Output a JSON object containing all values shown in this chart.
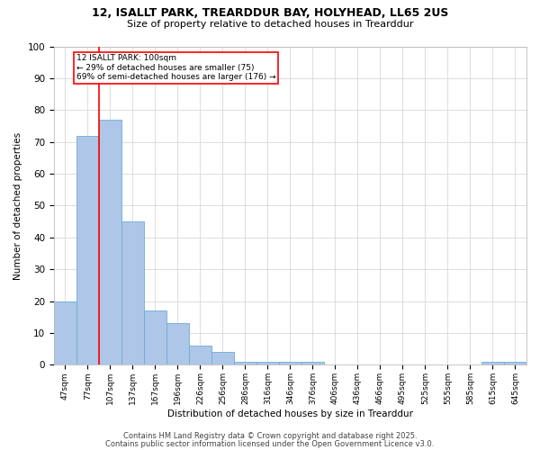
{
  "title1": "12, ISALLT PARK, TREARDDUR BAY, HOLYHEAD, LL65 2US",
  "title2": "Size of property relative to detached houses in Trearddur",
  "xlabel": "Distribution of detached houses by size in Trearddur",
  "ylabel": "Number of detached properties",
  "bins": [
    "47sqm",
    "77sqm",
    "107sqm",
    "137sqm",
    "167sqm",
    "196sqm",
    "226sqm",
    "256sqm",
    "286sqm",
    "316sqm",
    "346sqm",
    "376sqm",
    "406sqm",
    "436sqm",
    "466sqm",
    "495sqm",
    "525sqm",
    "555sqm",
    "585sqm",
    "615sqm",
    "645sqm"
  ],
  "values": [
    20,
    72,
    77,
    45,
    17,
    13,
    6,
    4,
    1,
    1,
    1,
    1,
    0,
    0,
    0,
    0,
    0,
    0,
    0,
    1,
    1
  ],
  "bar_color": "#aec6e8",
  "bar_edge_color": "#6baed6",
  "red_line_x": 1.5,
  "annotation_text": "12 ISALLT PARK: 100sqm\n← 29% of detached houses are smaller (75)\n69% of semi-detached houses are larger (176) →",
  "footer1": "Contains HM Land Registry data © Crown copyright and database right 2025.",
  "footer2": "Contains public sector information licensed under the Open Government Licence v3.0.",
  "ylim": [
    0,
    100
  ],
  "figsize": [
    6.0,
    5.0
  ],
  "dpi": 100
}
